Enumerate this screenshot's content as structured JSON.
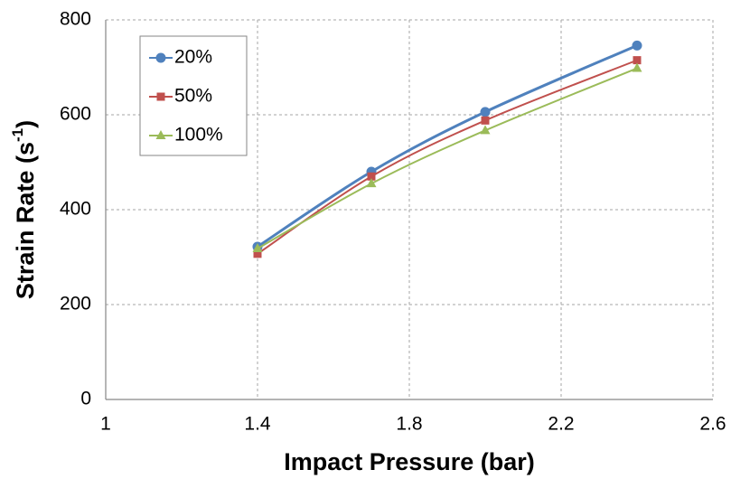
{
  "chart_data": {
    "type": "line",
    "x_label": "Impact Pressure (bar)",
    "y_label": [
      "Strain Rate (s",
      "-1",
      ")"
    ],
    "x": [
      1.4,
      1.7,
      2.0,
      2.4
    ],
    "series": [
      {
        "name": "20%",
        "color": "#4f81bd",
        "marker": "circle",
        "values": [
          322,
          480,
          606,
          746
        ]
      },
      {
        "name": "50%",
        "color": "#c0504d",
        "marker": "square",
        "values": [
          307,
          470,
          588,
          715
        ]
      },
      {
        "name": "100%",
        "color": "#9bbb59",
        "marker": "triangle",
        "values": [
          318,
          455,
          567,
          698
        ]
      }
    ],
    "xlim": [
      1,
      2.6
    ],
    "xticks": [
      1,
      1.4,
      1.8,
      2.2,
      2.6
    ],
    "ylim": [
      0,
      800
    ],
    "yticks": [
      0,
      200,
      400,
      600,
      800
    ],
    "grid": true,
    "smooth": true,
    "legend": "upper left"
  }
}
